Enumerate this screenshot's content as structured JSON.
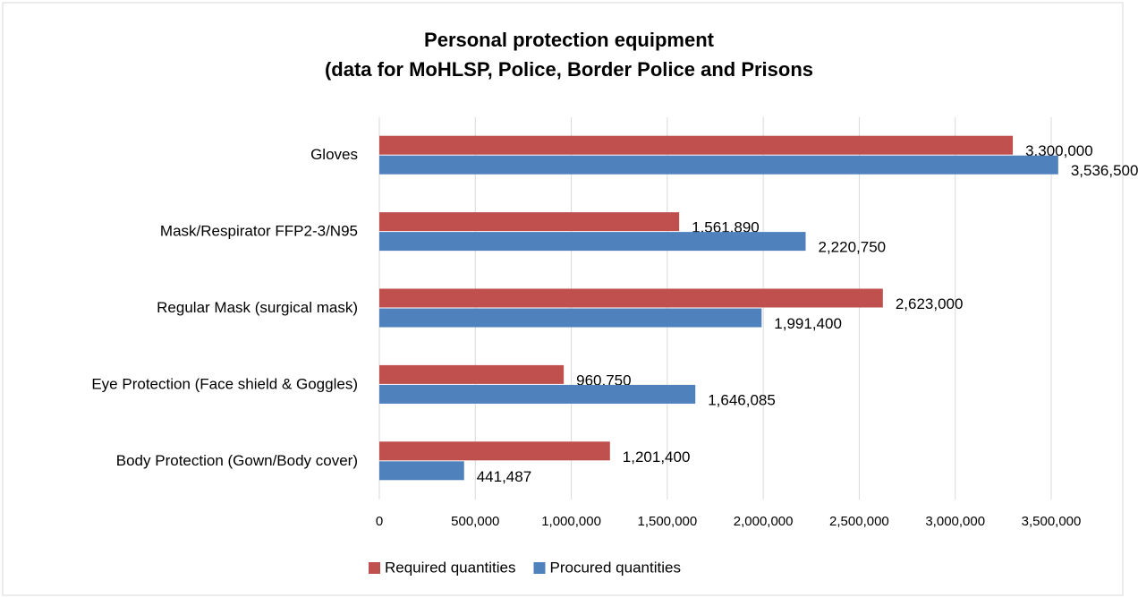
{
  "chart_data": {
    "type": "hbar",
    "title": [
      "Personal protection equipment",
      "(data for MoHLSP, Police, Border Police and Prisons"
    ],
    "categories": [
      "Gloves",
      "Mask/Respirator FFP2-3/N95",
      "Regular Mask (surgical mask)",
      "Eye Protection (Face shield & Goggles)",
      "Body Protection (Gown/Body cover)"
    ],
    "series": [
      {
        "name": "Required quantities",
        "color": "#c0504d",
        "values": [
          3300000,
          1561890,
          2623000,
          960750,
          1201400
        ],
        "value_labels": [
          "3,300,000",
          "1,561,890",
          "2,623,000",
          "960,750",
          "1,201,400"
        ]
      },
      {
        "name": "Procured quantities",
        "color": "#4f81bd",
        "values": [
          3536500,
          2220750,
          1991400,
          1646085,
          441487
        ],
        "value_labels": [
          "3,536,500",
          "2,220,750",
          "1,991,400",
          "1,646,085",
          "441,487"
        ]
      }
    ],
    "xlim": [
      0,
      3500000
    ],
    "xticks": [
      0,
      {
        "value": 500000,
        "label": "500,000"
      },
      {
        "value": 1000000,
        "label": "1,000,000"
      },
      {
        "value": 1500000,
        "label": "1,500,000"
      },
      {
        "value": 2000000,
        "label": "2,000,000"
      },
      {
        "value": 2500000,
        "label": "2,500,000"
      },
      {
        "value": 3000000,
        "label": "3,000,000"
      },
      {
        "value": 3500000,
        "label": "3,500,000"
      }
    ],
    "grid": true,
    "legend": "bottom"
  }
}
